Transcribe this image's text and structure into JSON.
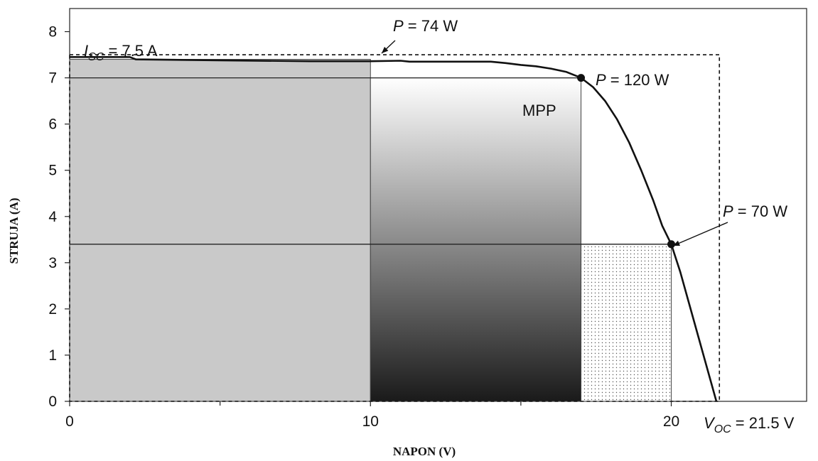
{
  "chart_data": {
    "type": "line",
    "xlabel": "NAPON (V)",
    "ylabel": "STRUJA (A)",
    "xlim": [
      0,
      24.5
    ],
    "ylim": [
      0,
      8.5
    ],
    "x_ticks": [
      0,
      10,
      20
    ],
    "x_minor_ticks": [
      5,
      15
    ],
    "y_ticks": [
      0,
      1,
      2,
      3,
      4,
      5,
      6,
      7,
      8
    ],
    "grid": false,
    "series": [
      {
        "values_xy": [
          [
            0,
            7.45
          ],
          [
            2,
            7.45
          ],
          [
            2.2,
            7.4
          ],
          [
            5,
            7.38
          ],
          [
            8,
            7.36
          ],
          [
            10,
            7.36
          ],
          [
            11,
            7.37
          ],
          [
            11.3,
            7.35
          ],
          [
            12,
            7.35
          ],
          [
            13,
            7.35
          ],
          [
            14,
            7.35
          ],
          [
            14.5,
            7.32
          ],
          [
            15,
            7.28
          ],
          [
            15.5,
            7.25
          ],
          [
            16,
            7.2
          ],
          [
            16.5,
            7.13
          ],
          [
            17,
            7.0
          ],
          [
            17.4,
            6.8
          ],
          [
            17.8,
            6.5
          ],
          [
            18.2,
            6.1
          ],
          [
            18.6,
            5.6
          ],
          [
            19,
            5.0
          ],
          [
            19.4,
            4.35
          ],
          [
            19.7,
            3.8
          ],
          [
            20,
            3.4
          ],
          [
            20.3,
            2.8
          ],
          [
            20.6,
            2.1
          ],
          [
            20.9,
            1.4
          ],
          [
            21.2,
            0.7
          ],
          [
            21.5,
            0
          ]
        ]
      }
    ],
    "reference_rectangles": [
      {
        "x": [
          0,
          10
        ],
        "y": [
          0,
          7.4
        ],
        "fill": "#c9c9c9"
      },
      {
        "x": [
          10,
          17
        ],
        "y": [
          0,
          7.0
        ],
        "fill": "gradient-white-to-black"
      },
      {
        "x": [
          17,
          20
        ],
        "y": [
          0,
          3.4
        ],
        "fill": "dotted"
      },
      {
        "x": [
          0,
          21.6
        ],
        "y": [
          0,
          7.5
        ],
        "style": "dashed"
      }
    ],
    "reference_lines": [
      {
        "y": 7.0,
        "x_from": 0,
        "x_to": 17
      },
      {
        "y": 3.4,
        "x_from": 0,
        "x_to": 20
      }
    ],
    "points": [
      {
        "x": 17,
        "y": 7.0
      },
      {
        "x": 20,
        "y": 3.4
      }
    ],
    "annotations": {
      "isc": {
        "prefix": "I",
        "sub": "SC",
        "rest": " = 7.5 A"
      },
      "p74": {
        "prefix": "P",
        "rest": " = 74 W"
      },
      "p120": {
        "prefix": "P",
        "rest": " = 120 W"
      },
      "mpp": "MPP",
      "p70": {
        "prefix": "P",
        "rest": " = 70 W"
      },
      "voc": {
        "prefix": "V",
        "sub": "OC",
        "rest": " = 21.5 V"
      }
    }
  }
}
